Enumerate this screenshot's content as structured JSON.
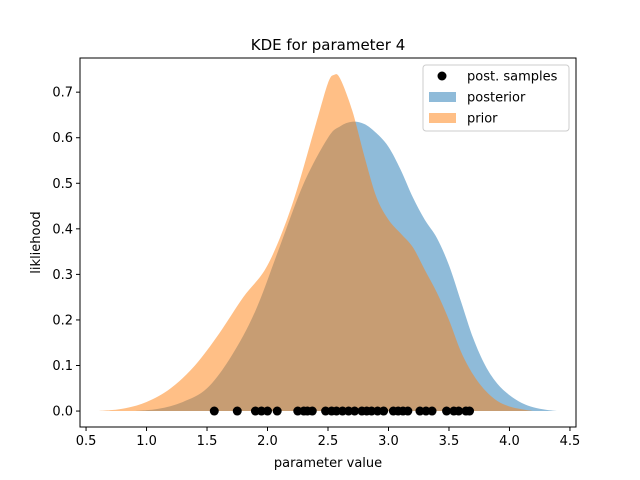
{
  "chart_data": {
    "type": "area",
    "title": "KDE for parameter 4",
    "xlabel": "parameter value",
    "ylabel": "likliehood",
    "xlim": [
      0.45,
      4.55
    ],
    "ylim": [
      -0.035,
      0.775
    ],
    "xticks": [
      0.5,
      1.0,
      1.5,
      2.0,
      2.5,
      3.0,
      3.5,
      4.0,
      4.5
    ],
    "xtick_labels": [
      "0.5",
      "1.0",
      "1.5",
      "2.0",
      "2.5",
      "3.0",
      "3.5",
      "4.0",
      "4.5"
    ],
    "yticks": [
      0.0,
      0.1,
      0.2,
      0.3,
      0.4,
      0.5,
      0.6,
      0.7
    ],
    "ytick_labels": [
      "0.0",
      "0.1",
      "0.2",
      "0.3",
      "0.4",
      "0.5",
      "0.6",
      "0.7"
    ],
    "grid": false,
    "legend_position": "top-right",
    "series": [
      {
        "name": "posterior",
        "kind": "area",
        "color": "#1f77b4",
        "opacity": 0.5,
        "x": [
          0.9,
          1.1,
          1.3,
          1.5,
          1.7,
          1.9,
          2.1,
          2.3,
          2.5,
          2.6,
          2.7,
          2.8,
          2.9,
          3.0,
          3.1,
          3.2,
          3.3,
          3.4,
          3.5,
          3.6,
          3.7,
          3.8,
          3.9,
          4.0,
          4.1,
          4.2,
          4.3,
          4.4
        ],
        "y": [
          0.0,
          0.005,
          0.02,
          0.05,
          0.12,
          0.22,
          0.36,
          0.5,
          0.6,
          0.625,
          0.635,
          0.63,
          0.61,
          0.58,
          0.53,
          0.47,
          0.42,
          0.38,
          0.32,
          0.24,
          0.16,
          0.1,
          0.06,
          0.035,
          0.018,
          0.008,
          0.003,
          0.0
        ]
      },
      {
        "name": "prior",
        "kind": "area",
        "color": "#ff7f0e",
        "opacity": 0.5,
        "x": [
          0.6,
          0.8,
          1.0,
          1.2,
          1.4,
          1.6,
          1.8,
          2.0,
          2.2,
          2.4,
          2.5,
          2.55,
          2.6,
          2.7,
          2.8,
          2.9,
          3.0,
          3.1,
          3.2,
          3.3,
          3.4,
          3.5,
          3.6,
          3.7,
          3.8,
          3.9,
          4.0,
          4.1,
          4.2
        ],
        "y": [
          0.0,
          0.005,
          0.02,
          0.05,
          0.1,
          0.17,
          0.25,
          0.32,
          0.45,
          0.63,
          0.72,
          0.738,
          0.73,
          0.66,
          0.56,
          0.47,
          0.42,
          0.39,
          0.36,
          0.31,
          0.26,
          0.2,
          0.13,
          0.08,
          0.045,
          0.022,
          0.01,
          0.004,
          0.0
        ]
      },
      {
        "name": "post. samples",
        "kind": "scatter",
        "color": "#000000",
        "x": [
          1.56,
          1.75,
          1.9,
          1.95,
          2.0,
          2.08,
          2.25,
          2.3,
          2.33,
          2.37,
          2.48,
          2.53,
          2.57,
          2.62,
          2.67,
          2.72,
          2.78,
          2.82,
          2.86,
          2.91,
          2.96,
          3.04,
          3.08,
          3.12,
          3.16,
          3.26,
          3.31,
          3.36,
          3.48,
          3.54,
          3.58,
          3.64,
          3.67
        ],
        "y": [
          0,
          0,
          0,
          0,
          0,
          0,
          0,
          0,
          0,
          0,
          0,
          0,
          0,
          0,
          0,
          0,
          0,
          0,
          0,
          0,
          0,
          0,
          0,
          0,
          0,
          0,
          0,
          0,
          0,
          0,
          0,
          0,
          0
        ]
      }
    ],
    "legend": [
      "post. samples",
      "posterior",
      "prior"
    ]
  }
}
